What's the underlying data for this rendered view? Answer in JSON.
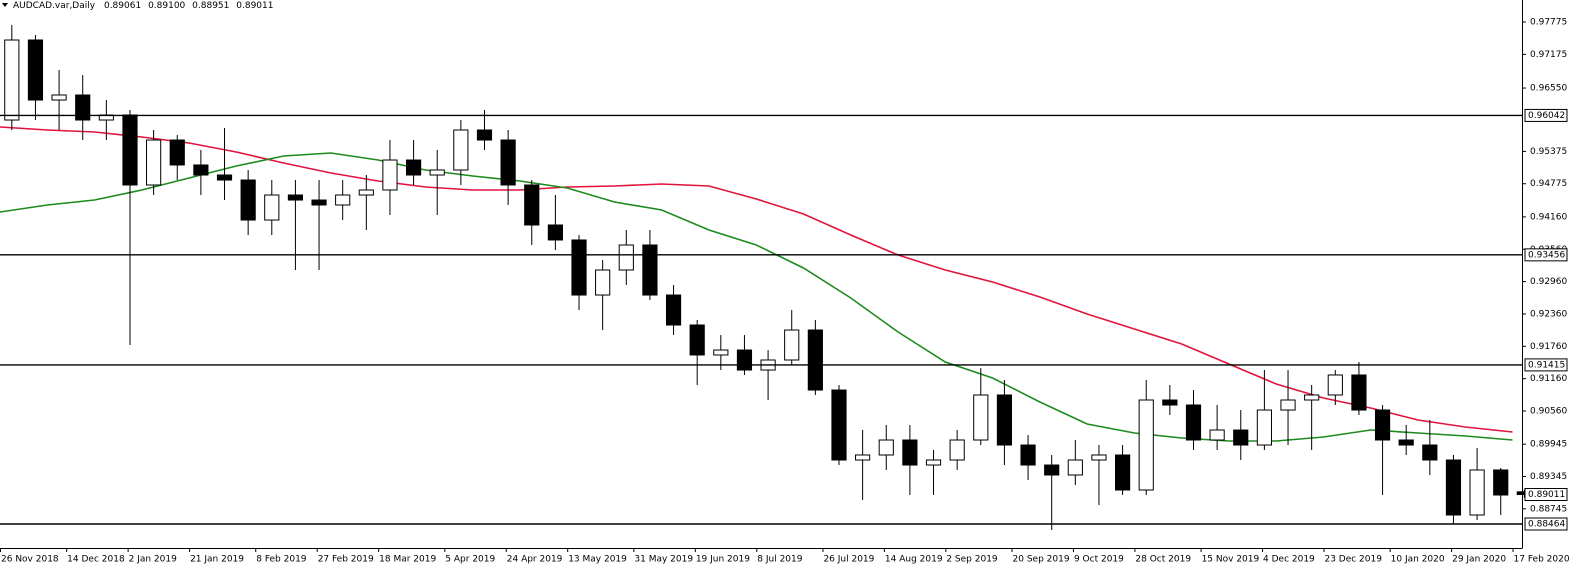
{
  "chart_data": {
    "type": "candlestick",
    "header": "AUDCAD.var,Daily",
    "last_bar_labels": [
      "0.89061",
      "0.89100",
      "0.88951",
      "0.89011"
    ],
    "x": [
      "26 Nov 2018",
      "3 Dec 2018",
      "10 Dec 2018",
      "17 Dec 2018",
      "24 Dec 2018",
      "31 Dec 2018",
      "7 Jan 2019",
      "14 Jan 2019",
      "21 Jan 2019",
      "28 Jan 2019",
      "4 Feb 2019",
      "11 Feb 2019",
      "18 Feb 2019",
      "25 Feb 2019",
      "4 Mar 2019",
      "11 Mar 2019",
      "18 Mar 2019",
      "25 Mar 2019",
      "1 Apr 2019",
      "8 Apr 2019",
      "15 Apr 2019",
      "22 Apr 2019",
      "29 Apr 2019",
      "6 May 2019",
      "13 May 2019",
      "20 May 2019",
      "27 May 2019",
      "3 Jun 2019",
      "10 Jun 2019",
      "17 Jun 2019",
      "24 Jun 2019",
      "1 Jul 2019",
      "8 Jul 2019",
      "15 Jul 2019",
      "22 Jul 2019",
      "29 Jul 2019",
      "5 Aug 2019",
      "12 Aug 2019",
      "19 Aug 2019",
      "26 Aug 2019",
      "2 Sep 2019",
      "9 Sep 2019",
      "16 Sep 2019",
      "23 Sep 2019",
      "30 Sep 2019",
      "7 Oct 2019",
      "14 Oct 2019",
      "21 Oct 2019",
      "28 Oct 2019",
      "4 Nov 2019",
      "11 Nov 2019",
      "18 Nov 2019",
      "25 Nov 2019",
      "2 Dec 2019",
      "9 Dec 2019",
      "16 Dec 2019",
      "23 Dec 2019",
      "30 Dec 2019",
      "6 Jan 2020",
      "13 Jan 2020",
      "20 Jan 2020",
      "27 Jan 2020",
      "3 Feb 2020",
      "10 Feb 2020",
      "17 Feb 2020"
    ],
    "open": [
      0.95957,
      0.97441,
      0.96328,
      0.96421,
      0.95957,
      0.9605,
      0.94752,
      0.95586,
      0.95123,
      0.94937,
      0.94844,
      0.94102,
      0.94566,
      0.94473,
      0.94381,
      0.94566,
      0.94659,
      0.95215,
      0.94937,
      0.9503,
      0.95772,
      0.95586,
      0.94752,
      0.9401,
      0.93732,
      0.92711,
      0.93175,
      0.93639,
      0.92711,
      0.92155,
      0.91599,
      0.91691,
      0.9132,
      0.91506,
      0.92062,
      0.90949,
      0.89651,
      0.89744,
      0.90022,
      0.89558,
      0.89651,
      0.90022,
      0.90857,
      0.89929,
      0.89558,
      0.89373,
      0.89651,
      0.89744,
      0.89095,
      0.90764,
      0.90671,
      0.90022,
      0.90207,
      0.89929,
      0.90578,
      0.90764,
      0.90857,
      0.91228,
      0.90578,
      0.90022,
      0.89929,
      0.89651,
      0.88631,
      0.89466,
      0.89061
    ],
    "high": [
      0.97719,
      0.97534,
      0.96885,
      0.96792,
      0.96328,
      0.96143,
      0.95772,
      0.95679,
      0.95401,
      0.95809,
      0.9503,
      0.94844,
      0.94844,
      0.94844,
      0.94844,
      0.94937,
      0.95586,
      0.95586,
      0.95401,
      0.95957,
      0.96143,
      0.95772,
      0.94844,
      0.94566,
      0.93824,
      0.93361,
      0.93917,
      0.93917,
      0.92897,
      0.92248,
      0.91969,
      0.91969,
      0.91691,
      0.92433,
      0.92248,
      0.91042,
      0.90207,
      0.903,
      0.903,
      0.89837,
      0.90207,
      0.91357,
      0.91135,
      0.90115,
      0.89744,
      0.90022,
      0.89929,
      0.89929,
      0.91135,
      0.91042,
      0.90949,
      0.90671,
      0.90578,
      0.9132,
      0.9132,
      0.91042,
      0.9132,
      0.91469,
      0.90671,
      0.903,
      0.90393,
      0.89744,
      0.89874,
      0.89503,
      0.891
    ],
    "low": [
      0.95772,
      0.95957,
      0.95772,
      0.95586,
      0.95586,
      0.91784,
      0.94566,
      0.94844,
      0.94566,
      0.94473,
      0.93824,
      0.93824,
      0.93175,
      0.93175,
      0.94102,
      0.93917,
      0.94195,
      0.94752,
      0.94195,
      0.94752,
      0.95401,
      0.94381,
      0.93639,
      0.93546,
      0.92433,
      0.92062,
      0.92897,
      0.92619,
      0.91969,
      0.91042,
      0.9132,
      0.91228,
      0.90764,
      0.91413,
      0.90857,
      0.89558,
      0.88909,
      0.89466,
      0.89002,
      0.89002,
      0.89466,
      0.89929,
      0.89558,
      0.8928,
      0.88353,
      0.89188,
      0.88817,
      0.89002,
      0.89002,
      0.90486,
      0.89837,
      0.89837,
      0.89651,
      0.89837,
      0.89929,
      0.89837,
      0.90671,
      0.90486,
      0.89002,
      0.89744,
      0.89373,
      0.88464,
      0.88538,
      0.88631,
      0.88951
    ],
    "close": [
      0.97441,
      0.96328,
      0.96421,
      0.95957,
      0.9605,
      0.94752,
      0.95586,
      0.95123,
      0.94937,
      0.94844,
      0.94102,
      0.94566,
      0.94473,
      0.94381,
      0.94566,
      0.94659,
      0.95215,
      0.94937,
      0.9503,
      0.95772,
      0.95586,
      0.94752,
      0.9401,
      0.93732,
      0.92711,
      0.93175,
      0.93639,
      0.92711,
      0.92155,
      0.91599,
      0.91691,
      0.9132,
      0.91506,
      0.92062,
      0.90949,
      0.89651,
      0.89744,
      0.90022,
      0.89558,
      0.89651,
      0.90022,
      0.90857,
      0.89929,
      0.89558,
      0.89373,
      0.89651,
      0.89744,
      0.89095,
      0.90764,
      0.90671,
      0.90022,
      0.90207,
      0.89929,
      0.90578,
      0.90764,
      0.90857,
      0.91228,
      0.90578,
      0.90022,
      0.89929,
      0.89651,
      0.88631,
      0.89466,
      0.89002,
      0.89011
    ],
    "up_color": "#ffffff",
    "down_color": "#000000",
    "lines": [
      {
        "color": "#e0143c",
        "x": [
          "26 Nov 2018",
          "10 Dec 2018",
          "24 Dec 2018",
          "7 Jan 2019",
          "21 Jan 2019",
          "4 Feb 2019",
          "18 Feb 2019",
          "4 Mar 2019",
          "18 Mar 2019",
          "1 Apr 2019",
          "15 Apr 2019",
          "29 Apr 2019",
          "13 May 2019",
          "27 May 2019",
          "10 Jun 2019",
          "24 Jun 2019",
          "8 Jul 2019",
          "22 Jul 2019",
          "5 Aug 2019",
          "19 Aug 2019",
          "2 Sep 2019",
          "16 Sep 2019",
          "30 Sep 2019",
          "14 Oct 2019",
          "28 Oct 2019",
          "11 Nov 2019",
          "25 Nov 2019",
          "9 Dec 2019",
          "23 Dec 2019",
          "6 Jan 2020",
          "20 Jan 2020",
          "3 Feb 2020",
          "17 Feb 2020"
        ],
        "values": [
          0.95827,
          0.95772,
          0.95735,
          0.95642,
          0.95531,
          0.95364,
          0.9516,
          0.94974,
          0.94826,
          0.94715,
          0.94659,
          0.94659,
          0.94715,
          0.94733,
          0.9477,
          0.94733,
          0.94492,
          0.94214,
          0.93824,
          0.93453,
          0.93175,
          0.92952,
          0.92674,
          0.92359,
          0.92081,
          0.91803,
          0.91432,
          0.91061,
          0.90801,
          0.90616,
          0.90393,
          0.90263,
          0.9017
        ]
      },
      {
        "color": "#1e8a1e",
        "x": [
          "26 Nov 2018",
          "10 Dec 2018",
          "24 Dec 2018",
          "7 Jan 2019",
          "21 Jan 2019",
          "4 Feb 2019",
          "18 Feb 2019",
          "4 Mar 2019",
          "18 Mar 2019",
          "1 Apr 2019",
          "15 Apr 2019",
          "29 Apr 2019",
          "13 May 2019",
          "27 May 2019",
          "10 Jun 2019",
          "24 Jun 2019",
          "8 Jul 2019",
          "22 Jul 2019",
          "5 Aug 2019",
          "19 Aug 2019",
          "2 Sep 2019",
          "16 Sep 2019",
          "30 Sep 2019",
          "14 Oct 2019",
          "28 Oct 2019",
          "11 Nov 2019",
          "25 Nov 2019",
          "9 Dec 2019",
          "23 Dec 2019",
          "6 Jan 2020",
          "20 Jan 2020",
          "3 Feb 2020",
          "17 Feb 2020"
        ],
        "values": [
          0.94251,
          0.94381,
          0.94473,
          0.94659,
          0.94882,
          0.95104,
          0.9529,
          0.95345,
          0.95215,
          0.9503,
          0.94919,
          0.94826,
          0.94696,
          0.94437,
          0.94288,
          0.93917,
          0.93639,
          0.93212,
          0.92656,
          0.92025,
          0.91469,
          0.91172,
          0.90727,
          0.90319,
          0.90152,
          0.90059,
          0.90003,
          0.90003,
          0.90078,
          0.90207,
          0.90152,
          0.90096,
          0.90022
        ]
      }
    ],
    "hlines": [
      0.96042,
      0.93456,
      0.91415,
      0.88464
    ],
    "ylim": [
      0.88019,
      0.98183
    ],
    "yticks": [
      0.97775,
      0.97175,
      {
        "value": 0.9655,
        "label": "0.96550"
      },
      0.95375,
      0.94775,
      {
        "value": 0.9416,
        "label": "0.94160"
      },
      {
        "value": 0.9356,
        "label": "0.93560"
      },
      {
        "value": 0.9296,
        "label": "0.92960"
      },
      {
        "value": 0.9236,
        "label": "0.92360"
      },
      {
        "value": 0.9176,
        "label": "0.91760"
      },
      {
        "value": 0.9116,
        "label": "0.91160"
      },
      {
        "value": 0.9056,
        "label": "0.90560"
      },
      0.89945,
      0.89345,
      0.88745
    ],
    "xlim": [
      "26 Nov 2018",
      "19 Feb 2020"
    ],
    "xticks": [
      "26 Nov 2018",
      "14 Dec 2018",
      "2 Jan 2019",
      "21 Jan 2019",
      "8 Feb 2019",
      "27 Feb 2019",
      "18 Mar 2019",
      "5 Apr 2019",
      "24 Apr 2019",
      "13 May 2019",
      "31 May 2019",
      "19 Jun 2019",
      "8 Jul 2019",
      "26 Jul 2019",
      "14 Aug 2019",
      "2 Sep 2019",
      "20 Sep 2019",
      "9 Oct 2019",
      "28 Oct 2019",
      "15 Nov 2019",
      "4 Dec 2019",
      "23 Dec 2019",
      "10 Jan 2020",
      "29 Jan 2020",
      "17 Feb 2020"
    ]
  }
}
